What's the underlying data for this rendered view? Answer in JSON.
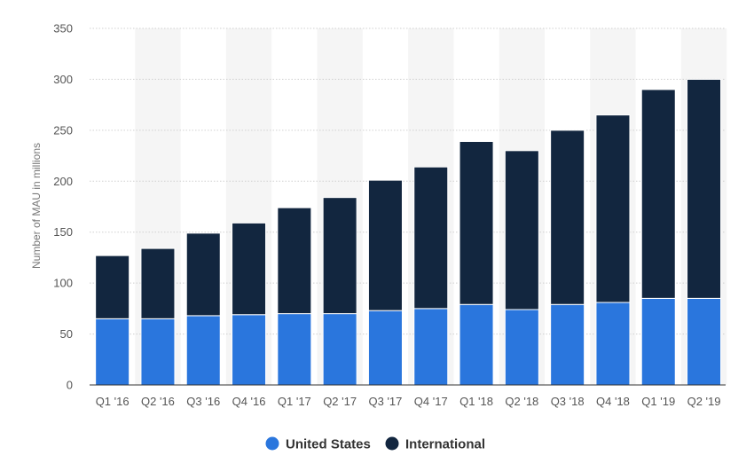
{
  "chart_data": {
    "type": "bar",
    "stacked": true,
    "title": "",
    "xlabel": "",
    "ylabel": "Number of MAU in millions",
    "ylim": [
      0,
      350
    ],
    "yticks": [
      0,
      50,
      100,
      150,
      200,
      250,
      300,
      350
    ],
    "grid": true,
    "legend_position": "bottom-center",
    "categories": [
      "Q1 '16",
      "Q2 '16",
      "Q3 '16",
      "Q4 '16",
      "Q1 '17",
      "Q2 '17",
      "Q3 '17",
      "Q4 '17",
      "Q1 '18",
      "Q2 '18",
      "Q3 '18",
      "Q4 '18",
      "Q1 '19",
      "Q2 '19"
    ],
    "series": [
      {
        "name": "United States",
        "color": "#2a76dd",
        "values": [
          65,
          65,
          68,
          69,
          70,
          70,
          73,
          75,
          79,
          74,
          79,
          81,
          85,
          85
        ]
      },
      {
        "name": "International",
        "color": "#12263f",
        "values": [
          62,
          69,
          81,
          90,
          104,
          114,
          128,
          139,
          160,
          156,
          171,
          184,
          205,
          215
        ]
      }
    ],
    "totals": [
      127,
      134,
      149,
      159,
      174,
      184,
      201,
      214,
      239,
      230,
      250,
      265,
      290,
      300
    ]
  },
  "colors": {
    "band": "#f5f5f5",
    "grid": "#d0d0d0",
    "axis": "#333333"
  }
}
